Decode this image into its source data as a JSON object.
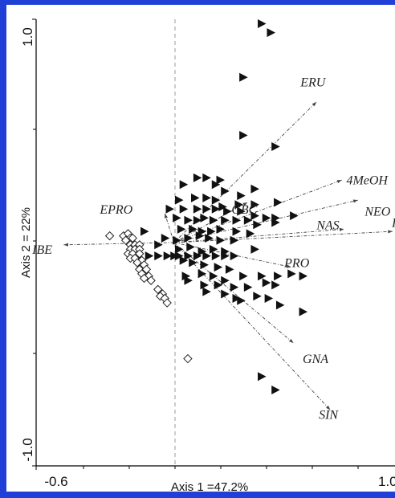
{
  "chart_data": {
    "type": "scatter",
    "title": "",
    "xlabel": "Axis 1 =47.2%",
    "ylabel": "Axis 2 = 22%",
    "xlim": [
      -0.6,
      1.0
    ],
    "ylim": [
      -1.0,
      1.0
    ],
    "x_tick_labels": [
      "-0.6",
      "1.0"
    ],
    "y_tick_labels": [
      "1.0",
      "-1.0"
    ],
    "grid": false,
    "reference_line": "dashed vertical at x = 0",
    "colors": {
      "frame_blue": "#1f3fd6",
      "axis": "#000000",
      "vector": "#444444",
      "dash": "#999999"
    },
    "vectors": [
      {
        "label": "ERU",
        "x": 0.62,
        "y": 0.63,
        "label_x": 0.55,
        "label_y": 0.7
      },
      {
        "label": "4MeOH",
        "x": 0.73,
        "y": 0.28,
        "label_x": 0.75,
        "label_y": 0.26
      },
      {
        "label": "NEO",
        "x": 0.8,
        "y": 0.19,
        "label_x": 0.83,
        "label_y": 0.12
      },
      {
        "label": "IBW",
        "x": 1.05,
        "y": 0.05,
        "label_x": 1.0,
        "label_y": 0.07
      },
      {
        "label": "NAS",
        "x": 0.74,
        "y": 0.06,
        "label_x": 0.62,
        "label_y": 0.06
      },
      {
        "label": "GBC",
        "x": 0.32,
        "y": 0.18,
        "label_x": 0.25,
        "label_y": 0.13
      },
      {
        "label": "EPRO",
        "x": -0.04,
        "y": 0.13,
        "label_x": -0.18,
        "label_y": 0.13
      },
      {
        "label": "IBE",
        "x": -0.48,
        "y": -0.01,
        "label_x": -0.53,
        "label_y": -0.05
      },
      {
        "label": "PRO",
        "x": 0.51,
        "y": -0.11,
        "label_x": 0.48,
        "label_y": -0.11
      },
      {
        "label": "GNA",
        "x": 0.52,
        "y": -0.45,
        "label_x": 0.56,
        "label_y": -0.54
      },
      {
        "label": "SIN",
        "x": 0.68,
        "y": -0.75,
        "label_x": 0.63,
        "label_y": -0.79
      }
    ],
    "series": [
      {
        "symbol": "filled-triangle",
        "points": [
          [
            0.38,
            0.98
          ],
          [
            0.42,
            0.94
          ],
          [
            0.3,
            0.74
          ],
          [
            0.3,
            0.48
          ],
          [
            0.44,
            0.43
          ],
          [
            0.1,
            0.29
          ],
          [
            0.14,
            0.29
          ],
          [
            0.2,
            0.28
          ],
          [
            0.04,
            0.26
          ],
          [
            0.18,
            0.26
          ],
          [
            0.22,
            0.23
          ],
          [
            0.29,
            0.21
          ],
          [
            0.35,
            0.24
          ],
          [
            0.02,
            0.19
          ],
          [
            0.09,
            0.2
          ],
          [
            0.14,
            0.2
          ],
          [
            0.18,
            0.19
          ],
          [
            0.21,
            0.16
          ],
          [
            0.28,
            0.17
          ],
          [
            0.35,
            0.17
          ],
          [
            0.45,
            0.18
          ],
          [
            -0.02,
            0.15
          ],
          [
            0.04,
            0.15
          ],
          [
            0.1,
            0.15
          ],
          [
            0.14,
            0.15
          ],
          [
            0.18,
            0.15
          ],
          [
            0.23,
            0.14
          ],
          [
            0.29,
            0.14
          ],
          [
            0.35,
            0.12
          ],
          [
            0.4,
            0.11
          ],
          [
            0.44,
            0.11
          ],
          [
            0.52,
            0.12
          ],
          [
            0.01,
            0.11
          ],
          [
            0.06,
            0.1
          ],
          [
            0.1,
            0.1
          ],
          [
            0.13,
            0.11
          ],
          [
            0.17,
            0.1
          ],
          [
            0.22,
            0.1
          ],
          [
            0.27,
            0.1
          ],
          [
            0.32,
            0.1
          ],
          [
            0.36,
            0.08
          ],
          [
            0.44,
            0.09
          ],
          [
            -0.13,
            0.05
          ],
          [
            0.03,
            0.06
          ],
          [
            0.08,
            0.06
          ],
          [
            0.12,
            0.05
          ],
          [
            0.16,
            0.05
          ],
          [
            0.2,
            0.06
          ],
          [
            0.27,
            0.05
          ],
          [
            0.33,
            0.04
          ],
          [
            -0.04,
            0.02
          ],
          [
            0.01,
            0.01
          ],
          [
            0.06,
            0.02
          ],
          [
            0.11,
            0.03
          ],
          [
            0.15,
            0.02
          ],
          [
            0.2,
            0.01
          ],
          [
            0.26,
            0.01
          ],
          [
            -0.07,
            -0.01
          ],
          [
            0.02,
            -0.03
          ],
          [
            0.07,
            -0.02
          ],
          [
            0.12,
            -0.04
          ],
          [
            0.17,
            -0.03
          ],
          [
            0.22,
            -0.04
          ],
          [
            0.35,
            -0.03
          ],
          [
            -0.11,
            -0.06
          ],
          [
            -0.07,
            -0.06
          ],
          [
            -0.03,
            -0.06
          ],
          [
            0.0,
            -0.06
          ],
          [
            0.02,
            -0.06
          ],
          [
            0.06,
            -0.06
          ],
          [
            0.1,
            -0.06
          ],
          [
            0.14,
            -0.06
          ],
          [
            0.18,
            -0.06
          ],
          [
            0.22,
            -0.06
          ],
          [
            0.26,
            -0.06
          ],
          [
            0.04,
            -0.08
          ],
          [
            0.08,
            -0.09
          ],
          [
            0.13,
            -0.1
          ],
          [
            0.19,
            -0.11
          ],
          [
            0.24,
            -0.12
          ],
          [
            0.05,
            -0.15
          ],
          [
            0.12,
            -0.14
          ],
          [
            0.17,
            -0.15
          ],
          [
            0.22,
            -0.17
          ],
          [
            0.3,
            -0.15
          ],
          [
            0.38,
            -0.15
          ],
          [
            0.45,
            -0.15
          ],
          [
            0.51,
            -0.14
          ],
          [
            0.56,
            -0.15
          ],
          [
            0.06,
            -0.17
          ],
          [
            0.13,
            -0.19
          ],
          [
            0.19,
            -0.19
          ],
          [
            0.26,
            -0.2
          ],
          [
            0.32,
            -0.2
          ],
          [
            0.4,
            -0.18
          ],
          [
            0.44,
            -0.19
          ],
          [
            0.14,
            -0.22
          ],
          [
            0.22,
            -0.23
          ],
          [
            0.27,
            -0.25
          ],
          [
            0.36,
            -0.24
          ],
          [
            0.41,
            -0.25
          ],
          [
            0.29,
            -0.26
          ],
          [
            0.46,
            -0.28
          ],
          [
            0.56,
            -0.31
          ],
          [
            0.38,
            -0.6
          ],
          [
            0.44,
            -0.66
          ]
        ]
      },
      {
        "symbol": "open-diamond",
        "points": [
          [
            -0.28,
            0.03
          ],
          [
            -0.22,
            0.03
          ],
          [
            -0.2,
            0.04
          ],
          [
            -0.19,
            0.02
          ],
          [
            -0.21,
            0.01
          ],
          [
            -0.18,
            0.02
          ],
          [
            -0.19,
            -0.01
          ],
          [
            -0.17,
            -0.01
          ],
          [
            -0.15,
            -0.01
          ],
          [
            -0.19,
            -0.03
          ],
          [
            -0.17,
            -0.03
          ],
          [
            -0.15,
            -0.03
          ],
          [
            -0.2,
            -0.05
          ],
          [
            -0.18,
            -0.05
          ],
          [
            -0.15,
            -0.05
          ],
          [
            -0.19,
            -0.07
          ],
          [
            -0.17,
            -0.07
          ],
          [
            -0.14,
            -0.08
          ],
          [
            -0.16,
            -0.09
          ],
          [
            -0.13,
            -0.1
          ],
          [
            -0.15,
            -0.12
          ],
          [
            -0.12,
            -0.12
          ],
          [
            -0.14,
            -0.14
          ],
          [
            -0.11,
            -0.15
          ],
          [
            -0.13,
            -0.16
          ],
          [
            -0.1,
            -0.17
          ],
          [
            -0.07,
            -0.21
          ],
          [
            -0.05,
            -0.23
          ],
          [
            -0.06,
            -0.24
          ],
          [
            -0.04,
            -0.25
          ],
          [
            -0.03,
            -0.27
          ],
          [
            0.06,
            -0.52
          ]
        ]
      }
    ]
  }
}
